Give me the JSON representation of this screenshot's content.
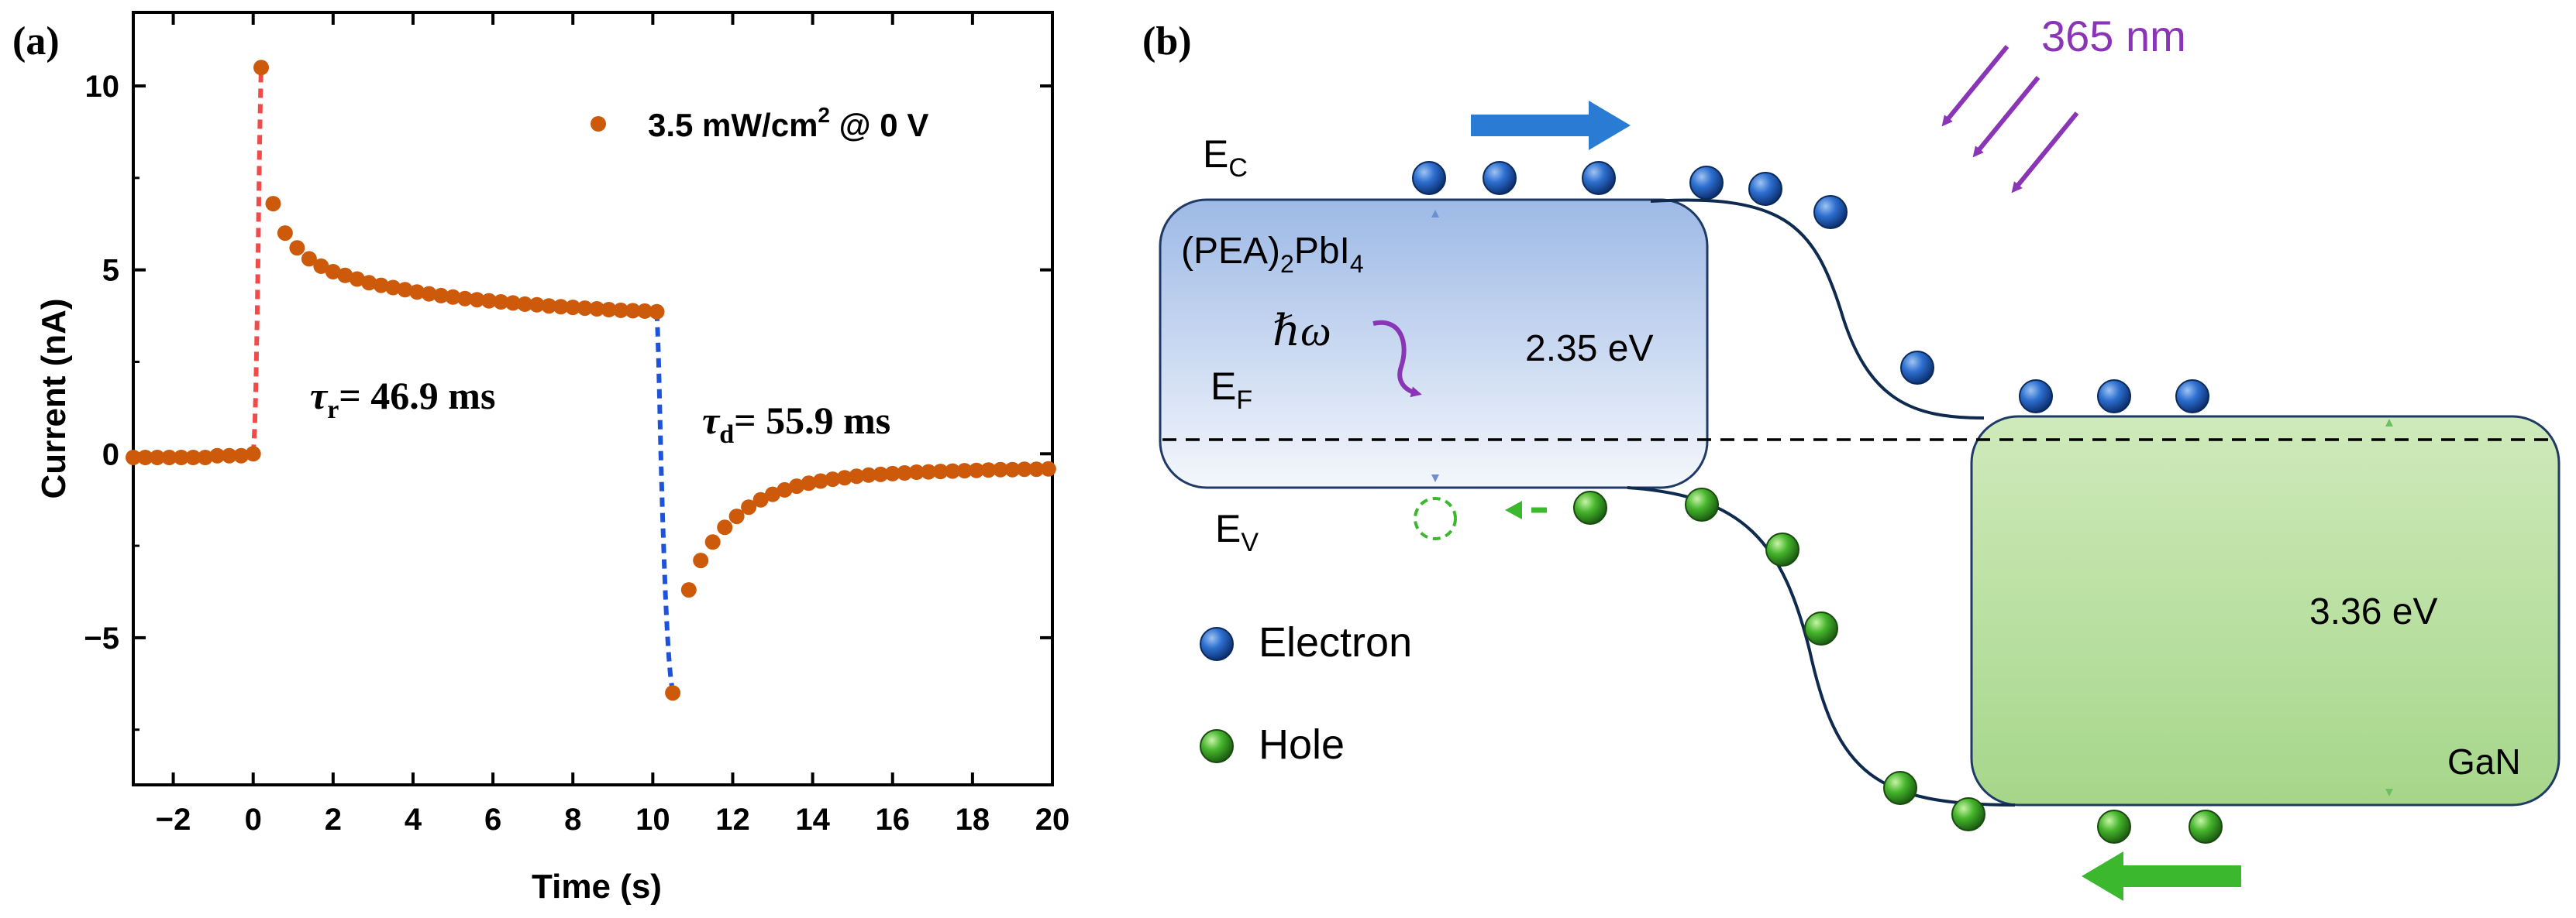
{
  "panel_a_label": "(a)",
  "panel_b_label": "(b)",
  "chart_data": {
    "type": "scatter",
    "title": "",
    "xlabel": "Time (s)",
    "ylabel": "Current (nA)",
    "xlim": [
      -3,
      20
    ],
    "ylim": [
      -9,
      12
    ],
    "xticks": [
      -2,
      0,
      2,
      4,
      6,
      8,
      10,
      12,
      14,
      16,
      18,
      20
    ],
    "xtick_labels": [
      "−2",
      "0",
      "2",
      "4",
      "6",
      "8",
      "10",
      "12",
      "14",
      "16",
      "18",
      "20"
    ],
    "yticks": [
      -5,
      0,
      5,
      10
    ],
    "ytick_labels": [
      "−5",
      "0",
      "5",
      "10"
    ],
    "legend": {
      "label_main": "3.5 mW/cm",
      "label_sup": "2",
      "label_tail": " @ 0 V",
      "placement": "top-right"
    },
    "series": [
      {
        "name": "3.5 mW/cm2 @ 0 V",
        "color": "#cc5a0a",
        "x": [
          -3.0,
          -2.7,
          -2.4,
          -2.1,
          -1.8,
          -1.5,
          -1.2,
          -0.9,
          -0.6,
          -0.3,
          0.0,
          0.2,
          0.5,
          0.8,
          1.1,
          1.4,
          1.7,
          2.0,
          2.3,
          2.6,
          2.9,
          3.2,
          3.5,
          3.8,
          4.1,
          4.4,
          4.7,
          5.0,
          5.3,
          5.6,
          5.9,
          6.2,
          6.5,
          6.8,
          7.1,
          7.4,
          7.7,
          8.0,
          8.3,
          8.6,
          8.9,
          9.2,
          9.5,
          9.8,
          10.1,
          10.5,
          10.9,
          11.2,
          11.5,
          11.8,
          12.1,
          12.4,
          12.7,
          13.0,
          13.3,
          13.6,
          13.9,
          14.2,
          14.5,
          14.8,
          15.1,
          15.4,
          15.7,
          16.0,
          16.3,
          16.6,
          16.9,
          17.2,
          17.5,
          17.8,
          18.1,
          18.4,
          18.7,
          19.0,
          19.3,
          19.6,
          19.9
        ],
        "y": [
          -0.1,
          -0.1,
          -0.1,
          -0.1,
          -0.1,
          -0.1,
          -0.1,
          -0.05,
          -0.05,
          -0.05,
          0.0,
          10.5,
          6.8,
          6.0,
          5.6,
          5.3,
          5.1,
          4.95,
          4.85,
          4.75,
          4.65,
          4.58,
          4.52,
          4.46,
          4.4,
          4.35,
          4.3,
          4.26,
          4.22,
          4.19,
          4.16,
          4.13,
          4.1,
          4.07,
          4.05,
          4.02,
          4.0,
          3.98,
          3.96,
          3.94,
          3.92,
          3.9,
          3.89,
          3.88,
          3.86,
          -6.5,
          -3.7,
          -2.9,
          -2.4,
          -2.0,
          -1.7,
          -1.45,
          -1.25,
          -1.1,
          -0.98,
          -0.88,
          -0.8,
          -0.74,
          -0.69,
          -0.65,
          -0.61,
          -0.58,
          -0.56,
          -0.54,
          -0.52,
          -0.5,
          -0.49,
          -0.48,
          -0.47,
          -0.46,
          -0.45,
          -0.44,
          -0.43,
          -0.43,
          -0.42,
          -0.42,
          -0.41
        ]
      }
    ],
    "fits": [
      {
        "name": "rise",
        "color": "#ef4b4b",
        "x": [
          0.0,
          0.02,
          0.04,
          0.06,
          0.08,
          0.1,
          0.12,
          0.14,
          0.16,
          0.18,
          0.2
        ],
        "y": [
          0.0,
          0.3,
          0.8,
          1.5,
          2.5,
          3.8,
          5.2,
          6.8,
          8.3,
          9.6,
          10.5
        ]
      },
      {
        "name": "decay",
        "color": "#1e52d8",
        "x": [
          10.1,
          10.12,
          10.14,
          10.16,
          10.18,
          10.2,
          10.24,
          10.28,
          10.32,
          10.36,
          10.4,
          10.44,
          10.48,
          10.5
        ],
        "y": [
          3.86,
          3.4,
          2.7,
          1.9,
          1.0,
          0.0,
          -1.5,
          -2.8,
          -3.9,
          -4.8,
          -5.5,
          -6.0,
          -6.35,
          -6.5
        ]
      }
    ],
    "annotations": {
      "tau_r": {
        "symbol": "τ",
        "sub": "r",
        "text": "= 46.9 ms"
      },
      "tau_d": {
        "symbol": "τ",
        "sub": "d",
        "text": "= 55.9 ms"
      }
    }
  },
  "band_diagram": {
    "ec": {
      "main": "E",
      "sub": "C"
    },
    "ev": {
      "main": "E",
      "sub": "V"
    },
    "ef": {
      "main": "E",
      "sub": "F"
    },
    "material1": {
      "t1": "(PEA)",
      "s1": "2",
      "t2": "PbI",
      "s2": "4",
      "gap": "2.35 eV",
      "top_color": "#9db9e6",
      "bottom_color": "#f4f7fc"
    },
    "material2": {
      "name": "GaN",
      "gap": "3.36 eV",
      "top_color": "#cfeabb",
      "bottom_color": "#a6d68a"
    },
    "photon_energy": "ℏω",
    "light": {
      "text": "365 nm",
      "color": "#8a35b5"
    },
    "legend": {
      "electron": "Electron",
      "hole": "Hole"
    },
    "electron_color": "#1f5fc0",
    "hole_color": "#3cad2c",
    "electron_arrow_color": "#2a7bd3",
    "hole_arrow_color": "#3cb82e"
  }
}
